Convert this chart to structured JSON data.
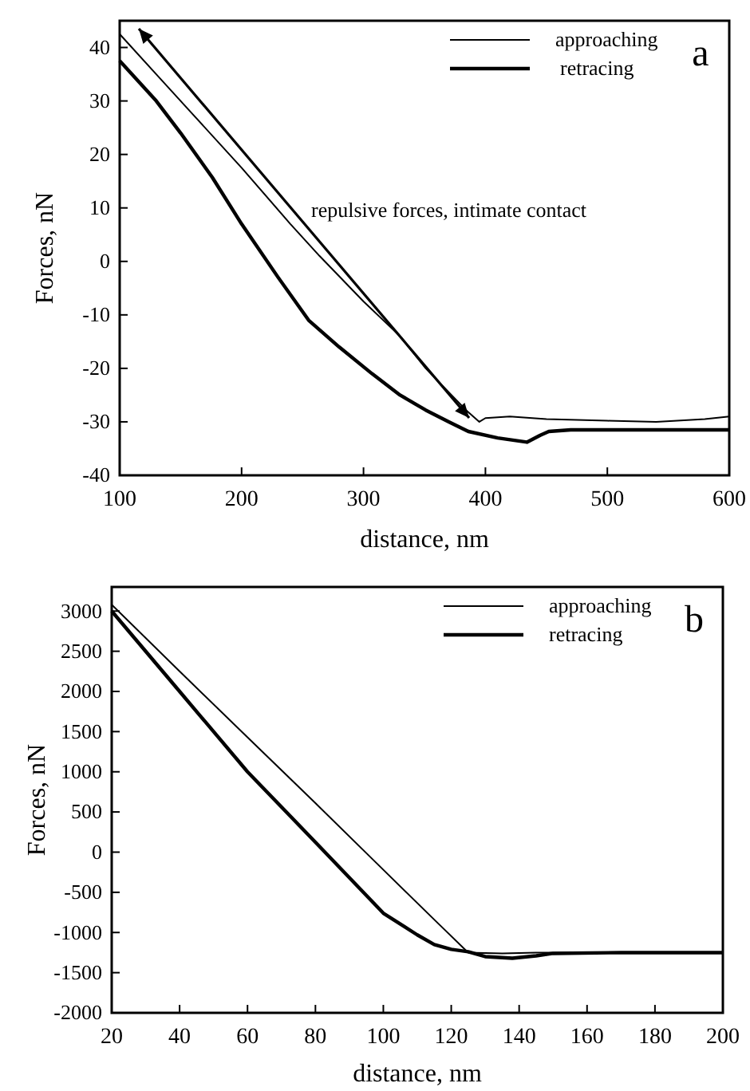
{
  "chart_data": [
    {
      "type": "line",
      "xlabel": "distance, nm",
      "ylabel": "Forces, nN",
      "xlim": [
        100,
        600
      ],
      "ylim": [
        -40,
        45
      ],
      "xticks": [
        100,
        200,
        300,
        400,
        500,
        600
      ],
      "yticks": [
        -40,
        -30,
        -20,
        -10,
        0,
        10,
        20,
        30,
        40
      ],
      "legend": "top right",
      "grid": false,
      "annotations": [
        "a",
        "repulsive forces, intimate contact"
      ],
      "series": [
        {
          "name": "approaching",
          "color": "#000000",
          "x": [
            100,
            130,
            160,
            200,
            240,
            264,
            300,
            330,
            351,
            370,
            385,
            395,
            400,
            420,
            450,
            500,
            540,
            580,
            600
          ],
          "values": [
            42.5,
            35,
            27.5,
            17.5,
            7,
            1,
            -7.5,
            -14,
            -20,
            -24.5,
            -28,
            -30,
            -29.3,
            -29,
            -29.5,
            -29.8,
            -30,
            -29.5,
            -29
          ]
        },
        {
          "name": "retracing",
          "color": "#000000",
          "x": [
            100,
            130,
            150,
            176,
            200,
            230,
            255,
            280,
            307,
            330,
            351,
            370,
            386,
            410,
            434,
            445,
            452,
            470,
            500,
            550,
            600
          ],
          "values": [
            37.5,
            30,
            24,
            15.7,
            7,
            -3,
            -11,
            -16,
            -21,
            -25,
            -27.8,
            -30,
            -31.8,
            -33,
            -33.8,
            -32.5,
            -31.8,
            -31.5,
            -31.5,
            -31.5,
            -31.5
          ]
        }
      ]
    },
    {
      "type": "line",
      "xlabel": "distance, nm",
      "ylabel": "Forces, nN",
      "xlim": [
        20,
        200
      ],
      "ylim": [
        -2000,
        3300
      ],
      "xticks": [
        20,
        40,
        60,
        80,
        100,
        120,
        140,
        160,
        180,
        200
      ],
      "yticks": [
        -2000,
        -1500,
        -1000,
        -500,
        0,
        500,
        1000,
        1500,
        2000,
        2500,
        3000
      ],
      "legend": "top right",
      "grid": false,
      "annotations": [
        "b"
      ],
      "series": [
        {
          "name": "approaching",
          "color": "#000000",
          "x": [
            20,
            40,
            60,
            80,
            100,
            115,
            125,
            135,
            145,
            160,
            180,
            200
          ],
          "values": [
            3080,
            2250,
            1430,
            610,
            -220,
            -840,
            -1250,
            -1260,
            -1250,
            -1250,
            -1250,
            -1250
          ]
        },
        {
          "name": "retracing",
          "color": "#000000",
          "x": [
            20,
            40,
            60,
            81,
            100,
            110,
            115,
            120,
            125,
            130,
            138,
            145,
            150,
            170,
            200
          ],
          "values": [
            3000,
            2000,
            1000,
            80,
            -760,
            -1030,
            -1150,
            -1210,
            -1240,
            -1300,
            -1320,
            -1290,
            -1260,
            -1250,
            -1250
          ]
        }
      ]
    }
  ]
}
